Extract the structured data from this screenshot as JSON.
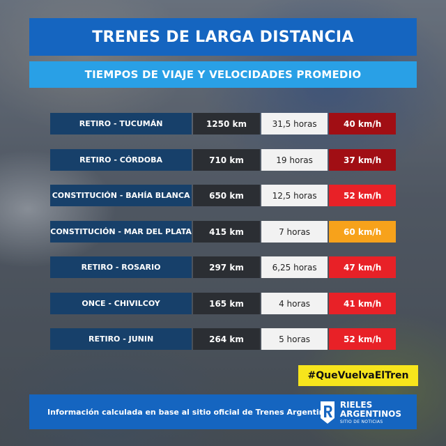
{
  "title": "TRENES DE LARGA DISTANCIA",
  "subtitle": "TIEMPOS DE VIAJE Y VELOCIDADES PROMEDIO",
  "routes": [
    {
      "route": "RETIRO - TUCUMÁN",
      "distance": "1250 km",
      "time": "31,5 horas",
      "speed": "40 km/h",
      "speed_color": "#a10e14"
    },
    {
      "route": "RETIRO - CÓRDOBA",
      "distance": "710 km",
      "time": "19 horas",
      "speed": "37 km/h",
      "speed_color": "#a10e14"
    },
    {
      "route": "CONSTITUCIÓN - BAHÍA BLANCA",
      "distance": "650 km",
      "time": "12,5 horas",
      "speed": "52 km/h",
      "speed_color": "#e82127"
    },
    {
      "route": "CONSTITUCIÓN  - MAR DEL PLATA",
      "distance": "415 km",
      "time": "7 horas",
      "speed": "60 km/h",
      "speed_color": "#f7a21b"
    },
    {
      "route": "RETIRO - ROSARIO",
      "distance": "297 km",
      "time": "6,25 horas",
      "speed": "47 km/h",
      "speed_color": "#e82127"
    },
    {
      "route": "ONCE - CHIVILCOY",
      "distance": "165 km",
      "time": "4 horas",
      "speed": "41 km/h",
      "speed_color": "#e82127"
    },
    {
      "route": "RETIRO - JUNIN",
      "distance": "264 km",
      "time": "5 horas",
      "speed": "52 km/h",
      "speed_color": "#e82127"
    }
  ],
  "hashtag": "#QueVuelvaElTren",
  "footer": {
    "text": "Información calculada en base al sitio oficial de Trenes Argentinos",
    "brand_line1": "RIELES",
    "brand_line2": "ARGENTINOS",
    "brand_tagline": "SITIO DE NOTICIAS",
    "logo_icon": "rail-r-logo"
  },
  "colors": {
    "title_bg": "#1565c0",
    "subtitle_bg": "#29a0e6",
    "route_bg": "#17406a",
    "distance_bg": "#2b2e33",
    "time_bg": "#f2f2f2",
    "hashtag_bg": "#f7e51c"
  }
}
